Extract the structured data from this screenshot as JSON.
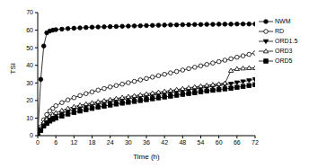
{
  "chart_data": {
    "type": "line",
    "x_label": "Time (h)",
    "y_label": "TSI",
    "x": [
      0,
      1,
      2,
      3,
      4,
      5,
      6,
      8,
      10,
      12,
      14,
      16,
      18,
      20,
      22,
      24,
      26,
      28,
      30,
      32,
      34,
      36,
      38,
      40,
      42,
      44,
      46,
      48,
      50,
      52,
      54,
      56,
      58,
      60,
      62,
      64,
      66,
      68,
      70,
      72
    ],
    "xlim": [
      0,
      72
    ],
    "xticks": [
      0,
      6,
      12,
      18,
      24,
      30,
      36,
      42,
      48,
      54,
      60,
      66,
      72
    ],
    "ylim": [
      0,
      70
    ],
    "yticks": [
      0,
      10,
      20,
      30,
      40,
      50,
      60,
      70
    ],
    "legend": "right",
    "series": [
      {
        "name": "NWM",
        "color": "#000000",
        "marker": "filled_circle",
        "values": [
          0,
          32,
          51,
          58.5,
          59.5,
          60,
          60.3,
          60.6,
          60.9,
          61.1,
          61.3,
          61.5,
          61.7,
          61.8,
          61.9,
          62,
          62.1,
          62.2,
          62.3,
          62.4,
          62.5,
          62.6,
          62.7,
          62.8,
          62.9,
          63,
          63,
          63.1,
          63.1,
          63.2,
          63.2,
          63.3,
          63.3,
          63.4,
          63.4,
          63.4,
          63.5,
          63.5,
          63.5,
          63.5
        ]
      },
      {
        "name": "RD",
        "color": "#000000",
        "marker": "open_circle",
        "values": [
          0,
          5,
          9,
          12,
          14,
          15.5,
          17,
          18.8,
          20.3,
          21.6,
          22.8,
          23.9,
          24.9,
          25.9,
          26.8,
          27.7,
          28.5,
          29.3,
          30.1,
          30.9,
          31.7,
          32.5,
          33.3,
          34.1,
          34.9,
          35.7,
          36.5,
          37.3,
          38.1,
          38.9,
          39.7,
          40.5,
          41.3,
          42.1,
          42.9,
          43.7,
          44.6,
          45.4,
          46.2,
          47
        ]
      },
      {
        "name": "ORD1.5",
        "color": "#000000",
        "marker": "filled_triangle_down",
        "values": [
          0,
          3.5,
          6.5,
          8.5,
          9.8,
          10.8,
          11.5,
          12.8,
          14,
          15,
          15.9,
          16.7,
          17.4,
          18.1,
          18.7,
          19.3,
          19.9,
          20.5,
          21,
          21.5,
          22,
          22.5,
          23,
          23.5,
          24,
          24.5,
          25,
          25.5,
          26,
          26.5,
          27,
          27.5,
          28,
          28.5,
          29,
          29.5,
          30.2,
          30.8,
          31.4,
          32
        ]
      },
      {
        "name": "ORD3",
        "color": "#000000",
        "marker": "open_triangle",
        "values": [
          0,
          4,
          7.5,
          9.5,
          11,
          12,
          13,
          14.3,
          15.5,
          16.5,
          17.3,
          18,
          18.7,
          19.3,
          19.9,
          20.5,
          21.1,
          21.7,
          22.2,
          22.7,
          23.2,
          23.7,
          24.2,
          24.7,
          25.2,
          25.7,
          26.2,
          26.7,
          27.2,
          27.7,
          28.2,
          28.6,
          29,
          29.4,
          29.8,
          37,
          38,
          38.3,
          38.5,
          38.5
        ]
      },
      {
        "name": "ORD5",
        "color": "#000000",
        "marker": "filled_square",
        "values": [
          0,
          3,
          5.5,
          7,
          8.3,
          9.3,
          10,
          11.2,
          12.3,
          13.2,
          14,
          14.8,
          15.5,
          16.2,
          16.8,
          17.4,
          18,
          18.5,
          19,
          19.5,
          20,
          20.5,
          21,
          21.5,
          22,
          22.5,
          23,
          23.5,
          24,
          24.5,
          25,
          25.4,
          25.8,
          26.2,
          26.6,
          27,
          27.5,
          28,
          28.5,
          29
        ]
      }
    ]
  }
}
